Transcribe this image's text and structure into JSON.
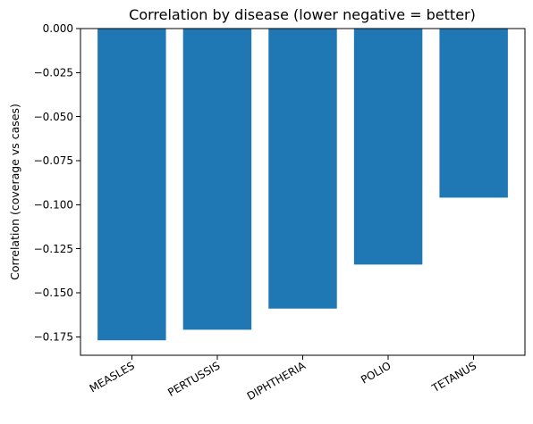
{
  "chart_data": {
    "type": "bar",
    "title": "Correlation by disease (lower negative = better)",
    "xlabel": "",
    "ylabel": "Correlation (coverage vs cases)",
    "categories": [
      "MEASLES",
      "PERTUSSIS",
      "DIPHTHERIA",
      "POLIO",
      "TETANUS"
    ],
    "values": [
      -0.177,
      -0.171,
      -0.159,
      -0.134,
      -0.096
    ],
    "ylim": [
      -0.1855,
      0.0
    ],
    "yticks": [
      0.0,
      -0.025,
      -0.05,
      -0.075,
      -0.1,
      -0.125,
      -0.15,
      -0.175
    ],
    "ytick_labels": [
      "0.000",
      "−0.025",
      "−0.050",
      "−0.075",
      "−0.100",
      "−0.125",
      "−0.150",
      "−0.175"
    ],
    "bar_color": "#1f77b4",
    "grid": false,
    "legend": "none"
  }
}
